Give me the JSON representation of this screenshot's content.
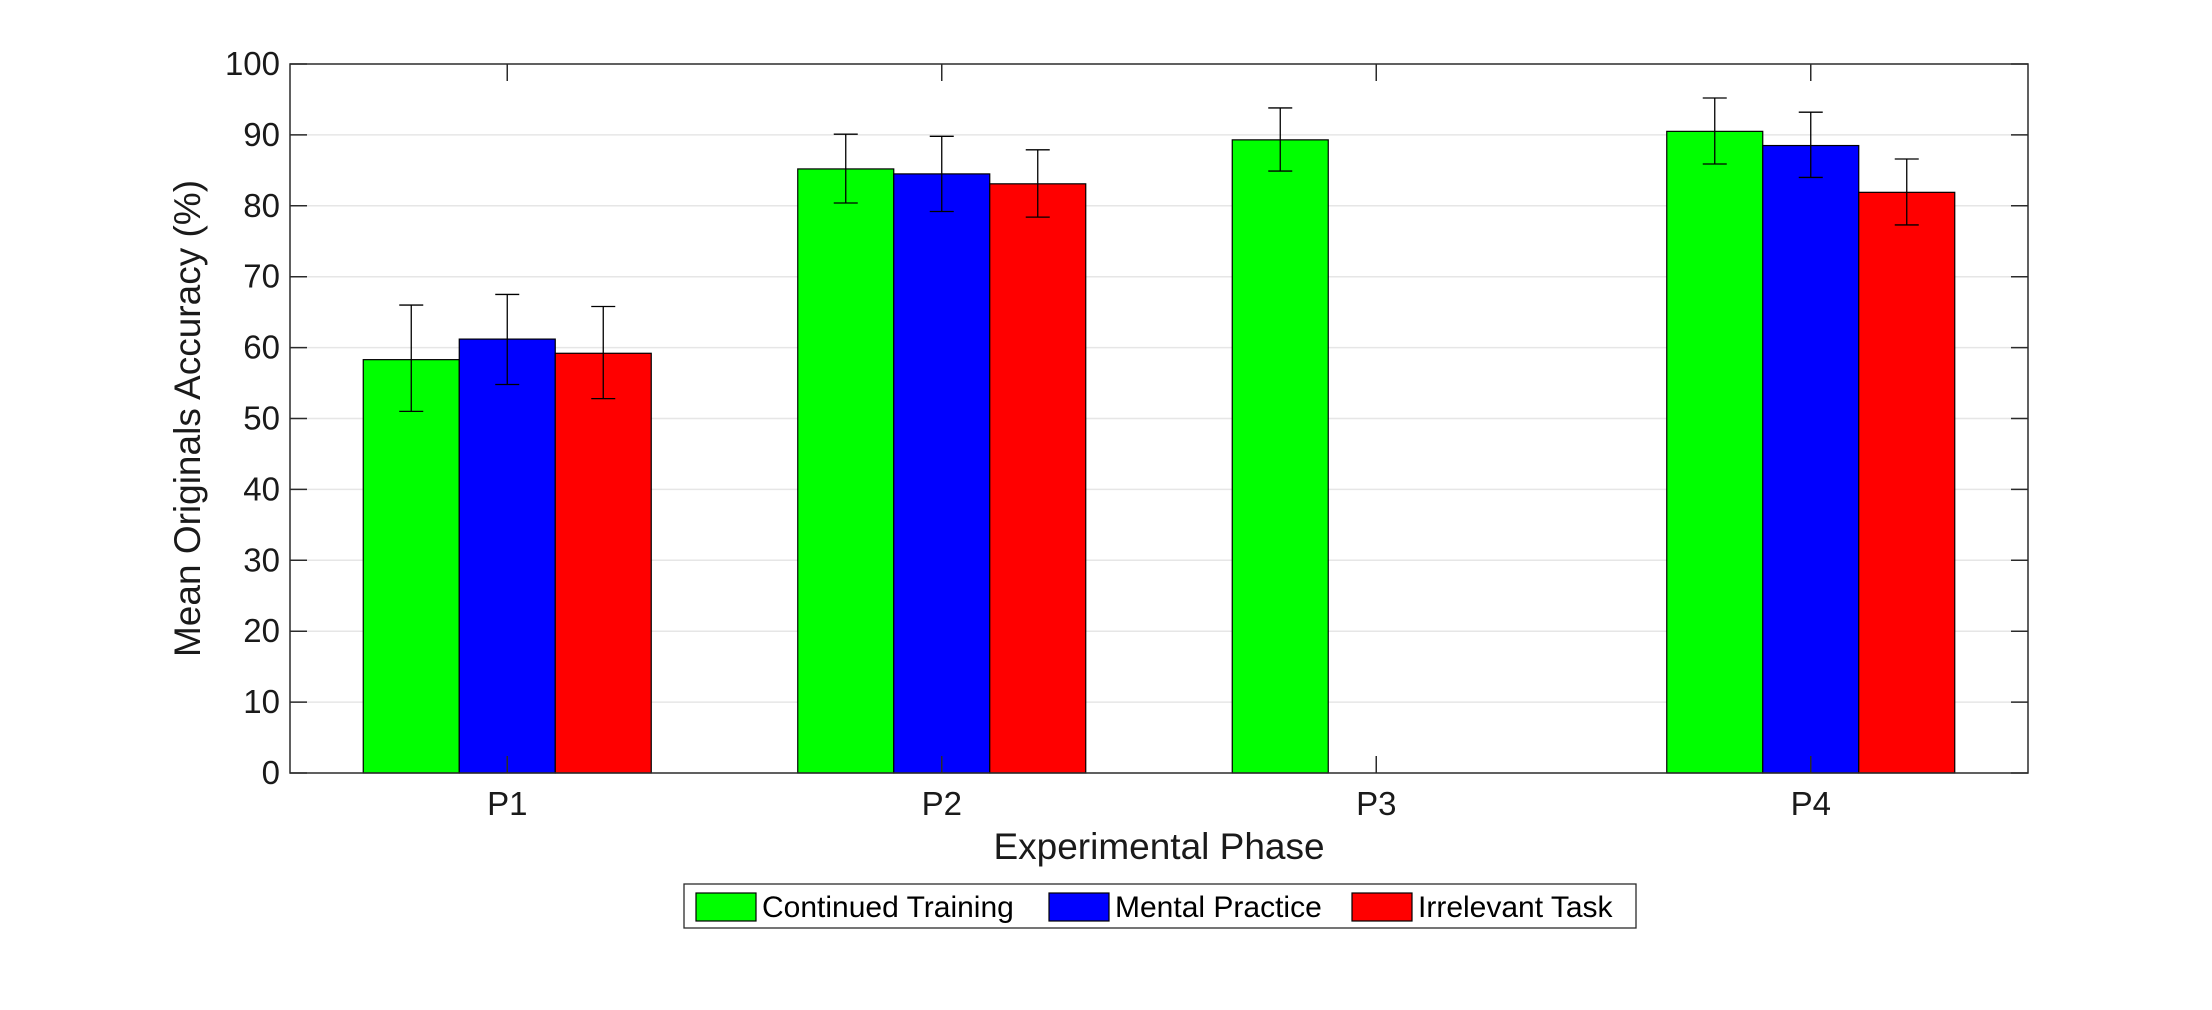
{
  "chart_data": {
    "type": "bar",
    "title": "",
    "xlabel": "Experimental Phase",
    "ylabel": "Mean Originals Accuracy (%)",
    "ylim": [
      0,
      100
    ],
    "yticks": [
      0,
      10,
      20,
      30,
      40,
      50,
      60,
      70,
      80,
      90,
      100
    ],
    "grid": "horizontal",
    "legend_position": "bottom-center",
    "categories": [
      "P1",
      "P2",
      "P3",
      "P4"
    ],
    "series": [
      {
        "name": "Continued Training",
        "color": "#00ff00",
        "values": [
          58.3,
          85.2,
          89.3,
          90.5
        ],
        "error_low": [
          51.0,
          80.4,
          84.9,
          85.9
        ],
        "error_high": [
          66.0,
          90.1,
          93.8,
          95.2
        ]
      },
      {
        "name": "Mental Practice",
        "color": "#0000ff",
        "values": [
          61.2,
          84.5,
          null,
          88.5
        ],
        "error_low": [
          54.8,
          79.2,
          null,
          84.0
        ],
        "error_high": [
          67.5,
          89.8,
          null,
          93.2
        ]
      },
      {
        "name": "Irrelevant Task",
        "color": "#ff0000",
        "values": [
          59.2,
          83.1,
          null,
          81.9
        ],
        "error_low": [
          52.8,
          78.4,
          null,
          77.3
        ],
        "error_high": [
          65.8,
          87.9,
          null,
          86.6
        ]
      }
    ]
  }
}
